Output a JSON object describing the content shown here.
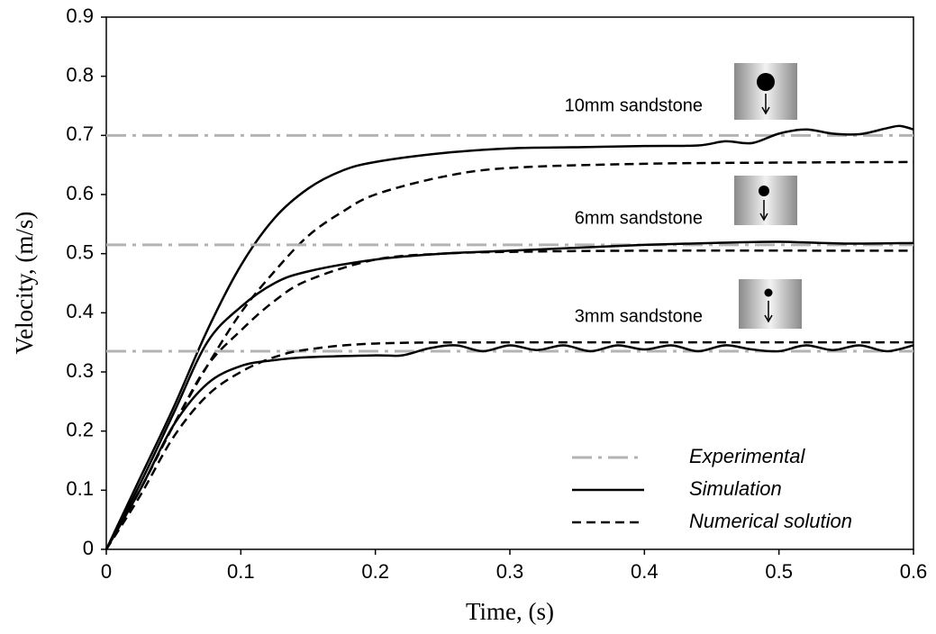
{
  "chart_data": {
    "type": "line",
    "xlabel": "Time, (s)",
    "ylabel": "Velocity, (m/s)",
    "xlim": [
      0,
      0.6
    ],
    "xticks": [
      0,
      0.1,
      0.2,
      0.3,
      0.4,
      0.5,
      0.6
    ],
    "ylim": [
      0,
      0.9
    ],
    "yticks": [
      0,
      0.1,
      0.2,
      0.3,
      0.4,
      0.5,
      0.6,
      0.7,
      0.8,
      0.9
    ],
    "grid": false,
    "legend": [
      {
        "name": "Experimental",
        "color": "#b3b3b3",
        "dash": "dashdot"
      },
      {
        "name": "Simulation",
        "color": "#000000",
        "dash": "solid"
      },
      {
        "name": "Numerical solution",
        "color": "#000000",
        "dash": "dashed"
      }
    ],
    "groups": [
      {
        "label": "10mm sandstone",
        "experimental": 0.7,
        "simulation": {
          "x": [
            0,
            0.025,
            0.05,
            0.075,
            0.1,
            0.125,
            0.15,
            0.175,
            0.2,
            0.25,
            0.3,
            0.35,
            0.4,
            0.44,
            0.46,
            0.48,
            0.5,
            0.52,
            0.54,
            0.56,
            0.58,
            0.59,
            0.6
          ],
          "y": [
            0,
            0.12,
            0.24,
            0.37,
            0.48,
            0.56,
            0.61,
            0.64,
            0.655,
            0.67,
            0.678,
            0.68,
            0.682,
            0.683,
            0.69,
            0.687,
            0.703,
            0.71,
            0.703,
            0.702,
            0.712,
            0.716,
            0.71
          ]
        },
        "numerical": {
          "x": [
            0,
            0.025,
            0.05,
            0.075,
            0.1,
            0.125,
            0.15,
            0.175,
            0.2,
            0.25,
            0.3,
            0.4,
            0.5,
            0.6
          ],
          "y": [
            0,
            0.1,
            0.21,
            0.31,
            0.4,
            0.47,
            0.53,
            0.57,
            0.6,
            0.63,
            0.645,
            0.652,
            0.654,
            0.655
          ]
        }
      },
      {
        "label": "6mm sandstone",
        "experimental": 0.515,
        "simulation": {
          "x": [
            0,
            0.025,
            0.05,
            0.075,
            0.1,
            0.125,
            0.15,
            0.2,
            0.25,
            0.3,
            0.35,
            0.4,
            0.45,
            0.5,
            0.55,
            0.6
          ],
          "y": [
            0,
            0.11,
            0.23,
            0.35,
            0.41,
            0.45,
            0.47,
            0.49,
            0.5,
            0.505,
            0.51,
            0.515,
            0.518,
            0.52,
            0.517,
            0.518
          ]
        },
        "numerical": {
          "x": [
            0,
            0.025,
            0.05,
            0.075,
            0.1,
            0.125,
            0.15,
            0.2,
            0.25,
            0.3,
            0.4,
            0.6
          ],
          "y": [
            0,
            0.1,
            0.21,
            0.31,
            0.37,
            0.42,
            0.455,
            0.49,
            0.5,
            0.503,
            0.505,
            0.505
          ]
        }
      },
      {
        "label": "3mm sandstone",
        "experimental": 0.335,
        "simulation": {
          "x": [
            0,
            0.025,
            0.05,
            0.075,
            0.1,
            0.125,
            0.15,
            0.2,
            0.22,
            0.24,
            0.26,
            0.28,
            0.3,
            0.32,
            0.34,
            0.36,
            0.38,
            0.4,
            0.42,
            0.44,
            0.46,
            0.48,
            0.5,
            0.52,
            0.54,
            0.56,
            0.58,
            0.6
          ],
          "y": [
            0,
            0.1,
            0.21,
            0.28,
            0.31,
            0.32,
            0.325,
            0.328,
            0.328,
            0.34,
            0.345,
            0.335,
            0.345,
            0.337,
            0.345,
            0.335,
            0.345,
            0.338,
            0.345,
            0.335,
            0.345,
            0.338,
            0.335,
            0.345,
            0.337,
            0.345,
            0.335,
            0.345
          ]
        },
        "numerical": {
          "x": [
            0,
            0.025,
            0.05,
            0.075,
            0.1,
            0.125,
            0.15,
            0.2,
            0.3,
            0.6
          ],
          "y": [
            0,
            0.09,
            0.19,
            0.26,
            0.3,
            0.325,
            0.338,
            0.348,
            0.35,
            0.35
          ]
        }
      }
    ]
  }
}
